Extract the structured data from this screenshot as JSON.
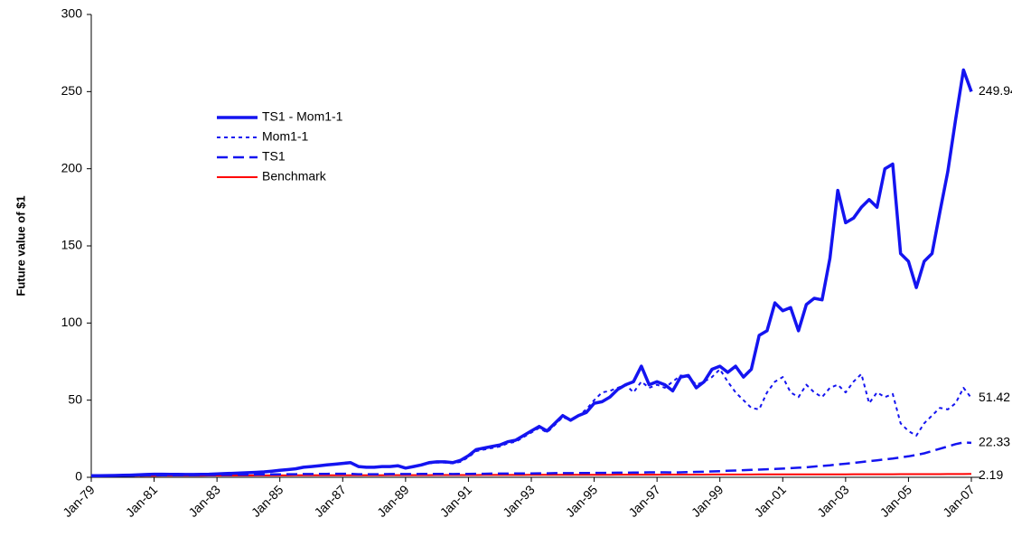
{
  "chart_data": {
    "type": "line",
    "y_label": "Future value of $1",
    "ylim": [
      0,
      300
    ],
    "yticks": [
      0,
      50,
      100,
      150,
      200,
      250,
      300
    ],
    "grid": false,
    "legend": "upper-left",
    "categories": [
      "Jan-79",
      null,
      null,
      null,
      null,
      null,
      null,
      null,
      "Jan-81",
      null,
      null,
      null,
      null,
      null,
      null,
      null,
      "Jan-83",
      null,
      null,
      null,
      null,
      null,
      null,
      null,
      "Jan-85",
      null,
      null,
      null,
      null,
      null,
      null,
      null,
      "Jan-87",
      null,
      null,
      null,
      null,
      null,
      null,
      null,
      "Jan-89",
      null,
      null,
      null,
      null,
      null,
      null,
      null,
      "Jan-91",
      null,
      null,
      null,
      null,
      null,
      null,
      null,
      "Jan-93",
      null,
      null,
      null,
      null,
      null,
      null,
      null,
      "Jan-95",
      null,
      null,
      null,
      null,
      null,
      null,
      null,
      "Jan-97",
      null,
      null,
      null,
      null,
      null,
      null,
      null,
      "Jan-99",
      null,
      null,
      null,
      null,
      null,
      null,
      null,
      "Jan-01",
      null,
      null,
      null,
      null,
      null,
      null,
      null,
      "Jan-03",
      null,
      null,
      null,
      null,
      null,
      null,
      null,
      "Jan-05",
      null,
      null,
      null,
      null,
      null,
      null,
      null,
      "Jan-07"
    ],
    "series": [
      {
        "name": "TS1 - Mom1-1",
        "color": "#1414f0",
        "style": "solid",
        "width": 3.5,
        "values": [
          1,
          1,
          1.1,
          1.2,
          1.3,
          1.4,
          1.6,
          1.8,
          2,
          2,
          1.9,
          1.9,
          1.8,
          1.8,
          1.9,
          2,
          2.2,
          2.4,
          2.6,
          2.8,
          3,
          3.2,
          3.5,
          4,
          4.5,
          5,
          5.5,
          6.5,
          7,
          7.5,
          8,
          8.5,
          9,
          9.5,
          7,
          6.5,
          6.5,
          7,
          7,
          7.5,
          6,
          7,
          8,
          9.5,
          10,
          10,
          9.5,
          11,
          14,
          18,
          19,
          20,
          21,
          23,
          24,
          27,
          30,
          33,
          30,
          35,
          40,
          37,
          40,
          42,
          48,
          49,
          52,
          57,
          60,
          62,
          72,
          60,
          62,
          60,
          56,
          65,
          66,
          58,
          62,
          70,
          72,
          68,
          72,
          65,
          70,
          92,
          95,
          113,
          108,
          110,
          95,
          112,
          116,
          115,
          142,
          186,
          165,
          168,
          175,
          180,
          175,
          200,
          203,
          145,
          140,
          123,
          140,
          145,
          172,
          198,
          232,
          264,
          249.94
        ]
      },
      {
        "name": "Mom1-1",
        "color": "#1414f0",
        "style": "dotted",
        "width": 2,
        "values": [
          1,
          1,
          1.1,
          1.2,
          1.3,
          1.4,
          1.6,
          1.8,
          2,
          2,
          1.9,
          1.9,
          1.8,
          1.8,
          1.9,
          2,
          2.2,
          2.4,
          2.6,
          2.8,
          3,
          3.2,
          3.5,
          4,
          4.5,
          5,
          5.5,
          6.5,
          7,
          7.5,
          8,
          8.5,
          9,
          9.5,
          7,
          6.5,
          6.5,
          7,
          7,
          7.5,
          6,
          7,
          8,
          9,
          9.5,
          9.5,
          9,
          10,
          13,
          17,
          18,
          19,
          20,
          22,
          23,
          26,
          29,
          32,
          29,
          34,
          39,
          37,
          40,
          44,
          50,
          55,
          56,
          58,
          60,
          55,
          62,
          58,
          60,
          58,
          62,
          66,
          65,
          60,
          62,
          65,
          70,
          62,
          55,
          50,
          45,
          44,
          55,
          62,
          65,
          55,
          52,
          60,
          55,
          52,
          58,
          60,
          55,
          62,
          67,
          48,
          55,
          52,
          54,
          35,
          30,
          27,
          35,
          40,
          45,
          44,
          48,
          58,
          51.42
        ]
      },
      {
        "name": "TS1",
        "color": "#1414f0",
        "style": "dashed",
        "width": 2.5,
        "values": [
          1,
          1,
          1,
          1.1,
          1.1,
          1.2,
          1.2,
          1.3,
          1.3,
          1.3,
          1.3,
          1.4,
          1.4,
          1.4,
          1.5,
          1.5,
          1.5,
          1.6,
          1.6,
          1.7,
          1.7,
          1.8,
          1.8,
          1.9,
          1.9,
          2,
          2,
          2.1,
          2.1,
          2.2,
          2.2,
          2.3,
          2.3,
          2.2,
          2,
          2,
          2,
          2,
          2.1,
          2.1,
          2.1,
          2.1,
          2.2,
          2.2,
          2.2,
          2.2,
          2.1,
          2.2,
          2.2,
          2.3,
          2.3,
          2.4,
          2.4,
          2.4,
          2.5,
          2.5,
          2.5,
          2.6,
          2.6,
          2.7,
          2.7,
          2.7,
          2.8,
          2.8,
          2.8,
          2.9,
          2.9,
          3,
          3,
          3.1,
          3.1,
          3.2,
          3.2,
          3.2,
          3.1,
          3.2,
          3.4,
          3.5,
          3.6,
          3.8,
          4,
          4.2,
          4.4,
          4.6,
          4.8,
          5,
          5.2,
          5.4,
          5.6,
          5.9,
          6.2,
          6.5,
          7,
          7.4,
          7.8,
          8.3,
          8.8,
          9.3,
          9.9,
          10.5,
          11,
          11.6,
          12.2,
          12.9,
          13.6,
          14.5,
          15.5,
          17,
          18.5,
          20,
          21.5,
          22.6,
          22.33
        ]
      },
      {
        "name": "Benchmark",
        "color": "#ff0000",
        "style": "solid",
        "width": 2,
        "values": [
          1,
          1.01,
          1.02,
          1.03,
          1.04,
          1.05,
          1.06,
          1.07,
          1.08,
          1.09,
          1.1,
          1.11,
          1.12,
          1.13,
          1.14,
          1.15,
          1.16,
          1.17,
          1.18,
          1.19,
          1.2,
          1.21,
          1.22,
          1.23,
          1.24,
          1.25,
          1.26,
          1.27,
          1.28,
          1.29,
          1.3,
          1.31,
          1.32,
          1.33,
          1.34,
          1.35,
          1.36,
          1.37,
          1.38,
          1.39,
          1.4,
          1.41,
          1.42,
          1.43,
          1.44,
          1.45,
          1.46,
          1.47,
          1.48,
          1.49,
          1.5,
          1.51,
          1.52,
          1.53,
          1.54,
          1.55,
          1.56,
          1.57,
          1.58,
          1.59,
          1.6,
          1.61,
          1.62,
          1.63,
          1.64,
          1.65,
          1.66,
          1.67,
          1.68,
          1.69,
          1.7,
          1.71,
          1.72,
          1.73,
          1.74,
          1.75,
          1.76,
          1.77,
          1.78,
          1.79,
          1.8,
          1.81,
          1.82,
          1.83,
          1.84,
          1.85,
          1.86,
          1.87,
          1.88,
          1.89,
          1.9,
          1.91,
          1.92,
          1.93,
          1.94,
          1.95,
          1.96,
          1.97,
          1.98,
          1.99,
          2,
          2.01,
          2.02,
          2.03,
          2.04,
          2.05,
          2.06,
          2.07,
          2.08,
          2.09,
          2.1,
          2.11,
          2.19
        ]
      }
    ]
  }
}
